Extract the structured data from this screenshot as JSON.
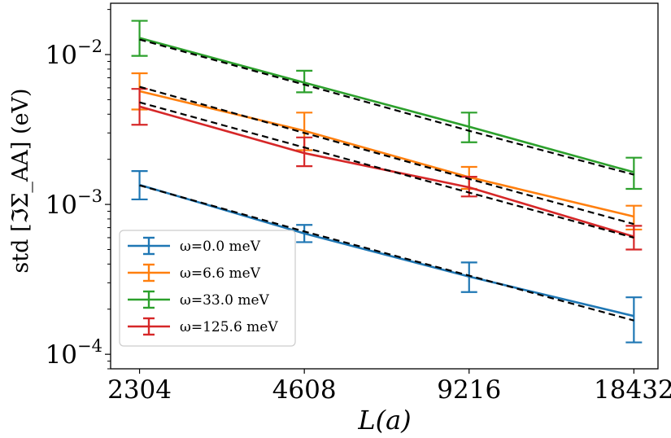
{
  "chart_data": {
    "type": "line",
    "title": "",
    "xlabel": "L(a)",
    "ylabel": "std [ℑΣ_AA] (eV)",
    "xscale": "log2",
    "yscale": "log10",
    "x": [
      2304,
      4608,
      9216,
      18432
    ],
    "xticks": [
      "2304",
      "4608",
      "9216",
      "18432"
    ],
    "xlim": [
      2040,
      20400
    ],
    "ylim": [
      8e-05,
      0.022
    ],
    "yticks": [
      {
        "value": 0.01,
        "base": "10",
        "exp": "−2"
      },
      {
        "value": 0.001,
        "base": "10",
        "exp": "−3"
      },
      {
        "value": 0.0001,
        "base": "10",
        "exp": "−4"
      }
    ],
    "grid": false,
    "legend_position": "lower-left",
    "series": [
      {
        "name": "ω=0.0 meV",
        "color": "#1f77b4",
        "values": [
          0.00135,
          0.00064,
          0.00033,
          0.00018
        ],
        "err_low": [
          0.00108,
          0.00056,
          0.00026,
          0.00012
        ],
        "err_high": [
          0.00167,
          0.00073,
          0.00041,
          0.00024
        ],
        "fit": [
          0.00134,
          0.00066,
          0.000335,
          0.000168
        ]
      },
      {
        "name": "ω=6.6 meV",
        "color": "#ff7f0e",
        "values": [
          0.0057,
          0.0031,
          0.00152,
          0.00083
        ],
        "err_low": [
          0.0043,
          0.0023,
          0.00127,
          0.00068
        ],
        "err_high": [
          0.0075,
          0.0041,
          0.00178,
          0.00098
        ],
        "fit": [
          0.0061,
          0.003,
          0.00148,
          0.00074
        ]
      },
      {
        "name": "ω=33.0 meV",
        "color": "#2ca02c",
        "values": [
          0.0129,
          0.0065,
          0.0033,
          0.00164
        ],
        "err_low": [
          0.0098,
          0.0056,
          0.0026,
          0.00127
        ],
        "err_high": [
          0.0168,
          0.0078,
          0.0041,
          0.00205
        ],
        "fit": [
          0.0126,
          0.0063,
          0.0031,
          0.00158
        ]
      },
      {
        "name": "ω=125.6 meV",
        "color": "#d62728",
        "values": [
          0.0045,
          0.0022,
          0.0013,
          0.00061
        ],
        "err_low": [
          0.0034,
          0.0018,
          0.00113,
          0.0005
        ],
        "err_high": [
          0.0059,
          0.0028,
          0.00153,
          0.00072
        ],
        "fit": [
          0.0048,
          0.0024,
          0.0012,
          0.0006
        ]
      }
    ]
  }
}
